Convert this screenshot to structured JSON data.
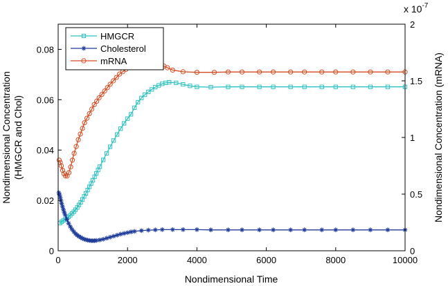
{
  "chart_data": {
    "type": "line",
    "xlabel": "Nondimensional Time",
    "ylabel_left": "Nondimensional Concentration\n(HMGCR and Chol)",
    "ylabel_right": "Nondimensional Concentration (mRNA)",
    "xlim": [
      0,
      10000
    ],
    "ylim_left": [
      0,
      0.09
    ],
    "ylim_right": [
      0,
      2e-07
    ],
    "x_ticks": [
      0,
      2000,
      4000,
      6000,
      8000,
      10000
    ],
    "x_tick_labels": [
      "0",
      "2000",
      "4000",
      "6000",
      "8000",
      "10000"
    ],
    "yleft_ticks": [
      0,
      0.02,
      0.04,
      0.06,
      0.08
    ],
    "yleft_tick_labels": [
      "0",
      "0.02",
      "0.04",
      "0.06",
      "0.08"
    ],
    "yright_ticks": [
      0,
      0.5,
      1,
      1.5,
      2
    ],
    "yright_tick_labels": [
      "0",
      "0.5",
      "1",
      "1.5",
      "2"
    ],
    "yright_multiplier_base": "x 10",
    "yright_multiplier_exp": "-7",
    "grid": false,
    "legend_position": "top-left",
    "series": [
      {
        "name": "HMGCR",
        "axis": "left",
        "color": "#2cc1c1",
        "marker": "square",
        "x": [
          50,
          100,
          150,
          200,
          250,
          300,
          350,
          400,
          450,
          500,
          550,
          600,
          650,
          700,
          750,
          800,
          850,
          900,
          950,
          1000,
          1050,
          1100,
          1150,
          1200,
          1300,
          1400,
          1500,
          1600,
          1700,
          1800,
          1900,
          2000,
          2100,
          2200,
          2300,
          2400,
          2500,
          2600,
          2700,
          2800,
          2900,
          3000,
          3100,
          3200,
          3400,
          3600,
          3800,
          4000,
          4400,
          4900,
          5300,
          5800,
          6200,
          6700,
          7100,
          7600,
          8000,
          8500,
          9000,
          9500,
          10000
        ],
        "y": [
          0.011,
          0.0115,
          0.012,
          0.0125,
          0.013,
          0.0135,
          0.0141,
          0.0148,
          0.0155,
          0.0163,
          0.0172,
          0.0182,
          0.0192,
          0.0204,
          0.0216,
          0.0228,
          0.0241,
          0.0254,
          0.0267,
          0.028,
          0.0294,
          0.0307,
          0.0321,
          0.0334,
          0.0361,
          0.0387,
          0.0413,
          0.0438,
          0.0462,
          0.0485,
          0.0506,
          0.0525,
          0.0542,
          0.0568,
          0.059,
          0.0607,
          0.062,
          0.0631,
          0.0641,
          0.065,
          0.0657,
          0.0663,
          0.0667,
          0.0669,
          0.0667,
          0.0661,
          0.0655,
          0.0651,
          0.065,
          0.0651,
          0.0651,
          0.0651,
          0.0651,
          0.0651,
          0.0651,
          0.0651,
          0.0651,
          0.0651,
          0.0651,
          0.0651,
          0.0651
        ]
      },
      {
        "name": "Cholesterol",
        "axis": "left",
        "color": "#1f3b9a",
        "marker": "star",
        "x": [
          20,
          40,
          60,
          80,
          100,
          125,
          150,
          175,
          200,
          250,
          300,
          350,
          400,
          450,
          500,
          550,
          600,
          650,
          700,
          750,
          800,
          850,
          900,
          950,
          1000,
          1050,
          1100,
          1200,
          1300,
          1400,
          1500,
          1600,
          1700,
          1800,
          1900,
          2000,
          2100,
          2200,
          2400,
          2600,
          2800,
          3000,
          3300,
          3600,
          4000,
          4400,
          4900,
          5300,
          5800,
          6200,
          6700,
          7100,
          7600,
          8000,
          8500,
          9000,
          9500,
          10000
        ],
        "y": [
          0.023,
          0.0222,
          0.0212,
          0.02,
          0.0188,
          0.0176,
          0.0164,
          0.0153,
          0.0143,
          0.0125,
          0.0109,
          0.0096,
          0.0085,
          0.0076,
          0.0068,
          0.0062,
          0.0057,
          0.0053,
          0.0049,
          0.0046,
          0.0044,
          0.0042,
          0.0041,
          0.004,
          0.004,
          0.004,
          0.0041,
          0.0043,
          0.0046,
          0.005,
          0.0054,
          0.0058,
          0.0062,
          0.0066,
          0.0069,
          0.0072,
          0.0075,
          0.0077,
          0.008,
          0.0082,
          0.0083,
          0.0084,
          0.0084,
          0.0084,
          0.0084,
          0.0083,
          0.0083,
          0.0083,
          0.0083,
          0.0083,
          0.0083,
          0.0083,
          0.0083,
          0.0083,
          0.0083,
          0.0083,
          0.0083,
          0.0083
        ]
      },
      {
        "name": "mRNA",
        "axis": "right",
        "color": "#d44a1f",
        "marker": "circle",
        "x": [
          30,
          60,
          90,
          130,
          170,
          210,
          260,
          310,
          360,
          410,
          460,
          520,
          580,
          640,
          700,
          760,
          830,
          900,
          970,
          1040,
          1110,
          1180,
          1260,
          1340,
          1420,
          1500,
          1590,
          1680,
          1770,
          1860,
          1950,
          2050,
          2150,
          2250,
          2350,
          2450,
          2550,
          2650,
          2750,
          2850,
          2950,
          3050,
          3150,
          3300,
          3600,
          4000,
          4500,
          4900,
          5300,
          5800,
          6200,
          6700,
          7100,
          7600,
          8000,
          8500,
          9000,
          9500,
          10000
        ],
        "y": [
          8e-08,
          7.8e-08,
          7.5e-08,
          7.1e-08,
          6.8e-08,
          6.6e-08,
          6.6e-08,
          6.9e-08,
          7.4e-08,
          8e-08,
          8.6e-08,
          9.2e-08,
          9.8e-08,
          1.03e-07,
          1.08e-07,
          1.13e-07,
          1.17e-07,
          1.21e-07,
          1.25e-07,
          1.29e-07,
          1.32e-07,
          1.35e-07,
          1.38e-07,
          1.41e-07,
          1.44e-07,
          1.47e-07,
          1.5e-07,
          1.53e-07,
          1.56e-07,
          1.58e-07,
          1.6e-07,
          1.62e-07,
          1.64e-07,
          1.656e-07,
          1.665e-07,
          1.67e-07,
          1.672e-07,
          1.67e-07,
          1.665e-07,
          1.655e-07,
          1.645e-07,
          1.63e-07,
          1.615e-07,
          1.595e-07,
          1.58e-07,
          1.575e-07,
          1.575e-07,
          1.578e-07,
          1.578e-07,
          1.578e-07,
          1.578e-07,
          1.578e-07,
          1.578e-07,
          1.578e-07,
          1.578e-07,
          1.578e-07,
          1.578e-07,
          1.578e-07,
          1.578e-07
        ]
      }
    ]
  }
}
